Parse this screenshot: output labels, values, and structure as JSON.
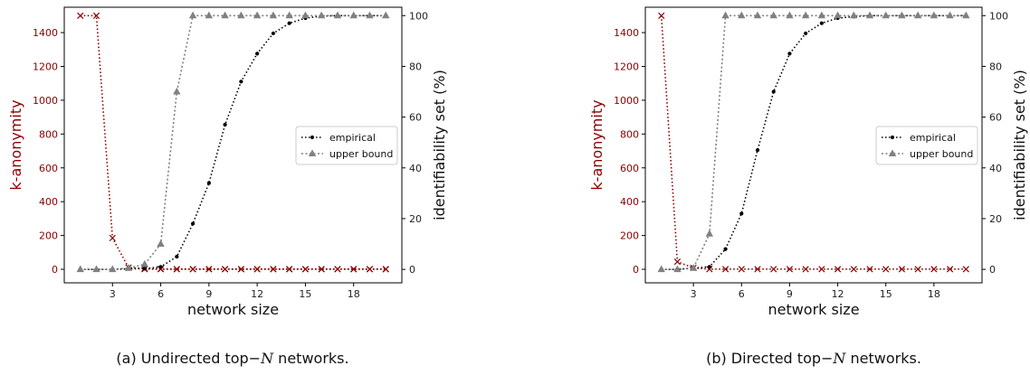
{
  "chart_data": [
    {
      "type": "line",
      "caption_prefix": "(a) Undirected top",
      "caption_math": "N",
      "caption_suffix": " networks.",
      "xlabel": "network size",
      "ylabel_left": "k-anonymity",
      "ylabel_right": "identifiability set (%)",
      "xlim": [
        0,
        21
      ],
      "xticks": [
        3,
        6,
        9,
        12,
        15,
        18
      ],
      "ylim_left": [
        -80,
        1550
      ],
      "yticks_left": [
        0,
        200,
        400,
        600,
        800,
        1000,
        1200,
        1400
      ],
      "ylim_right": [
        -5.3,
        103.3
      ],
      "yticks_right": [
        0,
        20,
        40,
        60,
        80,
        100
      ],
      "x": [
        1,
        2,
        3,
        4,
        5,
        6,
        7,
        8,
        9,
        10,
        11,
        12,
        13,
        14,
        15,
        16,
        17,
        18,
        19,
        20
      ],
      "series": [
        {
          "name": "",
          "axis": "left",
          "color": "#8b0000",
          "marker": "x",
          "values": [
            1500,
            1500,
            185,
            10,
            5,
            2,
            1,
            1,
            1,
            1,
            1,
            1,
            1,
            1,
            1,
            1,
            1,
            1,
            1,
            1
          ]
        },
        {
          "name": "",
          "axis": "left",
          "color": "#8b0000",
          "marker": "x",
          "dotted": false,
          "values": [
            null,
            null,
            null,
            null,
            1,
            1,
            1,
            1,
            1,
            1,
            1,
            1,
            1,
            1,
            1,
            1,
            1,
            1,
            1,
            1
          ]
        },
        {
          "name": "empirical",
          "axis": "right",
          "color": "#000000",
          "marker": "dot",
          "values": [
            0,
            0,
            0,
            0.2,
            0.3,
            1,
            5,
            18,
            34,
            57,
            74,
            85,
            93,
            97,
            99,
            99.8,
            100,
            100,
            100,
            100
          ]
        },
        {
          "name": "upper bound",
          "axis": "right",
          "color": "#808080",
          "marker": "triangle",
          "values": [
            0,
            0,
            0,
            0.5,
            2,
            10,
            70,
            100,
            100,
            100,
            100,
            100,
            100,
            100,
            100,
            100,
            100,
            100,
            100,
            100
          ]
        }
      ],
      "legend": "center-right"
    },
    {
      "type": "line",
      "caption_prefix": "(b) Directed top",
      "caption_math": "N",
      "caption_suffix": " networks.",
      "xlabel": "network size",
      "ylabel_left": "k-anonymity",
      "ylabel_right": "identifiability set (%)",
      "xlim": [
        0,
        21
      ],
      "xticks": [
        3,
        6,
        9,
        12,
        15,
        18
      ],
      "ylim_left": [
        -80,
        1550
      ],
      "yticks_left": [
        0,
        200,
        400,
        600,
        800,
        1000,
        1200,
        1400
      ],
      "ylim_right": [
        -5.3,
        103.3
      ],
      "yticks_right": [
        0,
        20,
        40,
        60,
        80,
        100
      ],
      "x": [
        1,
        2,
        3,
        4,
        5,
        6,
        7,
        8,
        9,
        10,
        11,
        12,
        13,
        14,
        15,
        16,
        17,
        18,
        19,
        20
      ],
      "series": [
        {
          "name": "",
          "axis": "left",
          "color": "#8b0000",
          "marker": "x",
          "values": [
            1500,
            45,
            8,
            1,
            1,
            1,
            1,
            1,
            1,
            1,
            1,
            1,
            1,
            1,
            1,
            1,
            1,
            1,
            1,
            1
          ]
        },
        {
          "name": "empirical",
          "axis": "right",
          "color": "#000000",
          "marker": "dot",
          "values": [
            0,
            0,
            0.5,
            1,
            8,
            22,
            47,
            70,
            85,
            93,
            97,
            99,
            99.6,
            100,
            100,
            100,
            100,
            100,
            100,
            100
          ]
        },
        {
          "name": "upper bound",
          "axis": "right",
          "color": "#808080",
          "marker": "triangle",
          "values": [
            0,
            0,
            0.5,
            14,
            100,
            100,
            100,
            100,
            100,
            100,
            100,
            100,
            100,
            100,
            100,
            100,
            100,
            100,
            100,
            100
          ]
        }
      ],
      "legend": "center-right"
    }
  ]
}
